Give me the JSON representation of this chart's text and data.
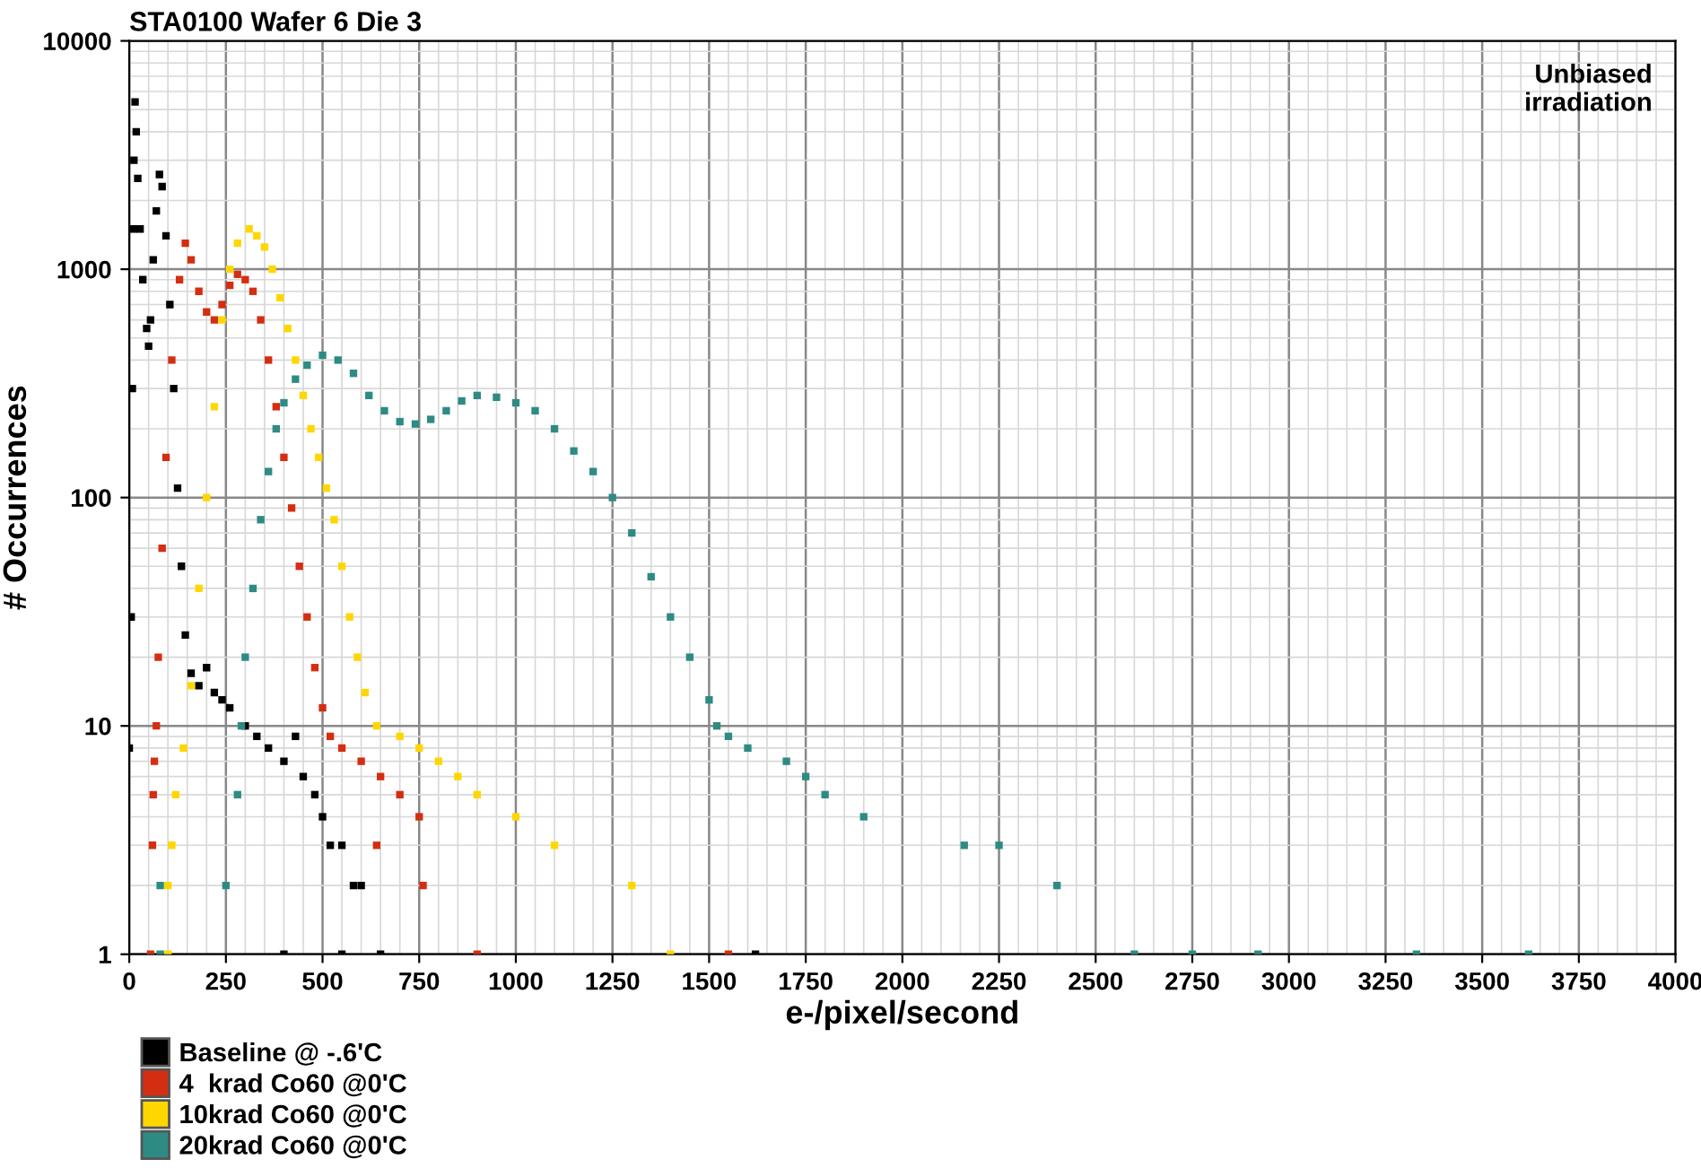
{
  "chart_data": {
    "type": "scatter",
    "title": "STA0100 Wafer 6 Die 3",
    "xlabel": "e-/pixel/second",
    "ylabel": "# Occurrences",
    "annotations": [
      "Unbiased\nirradiation"
    ],
    "xlim": [
      0,
      4000
    ],
    "xticks": [
      0,
      250,
      500,
      750,
      1000,
      1250,
      1500,
      1750,
      2000,
      2250,
      2500,
      2750,
      3000,
      3250,
      3500,
      3750,
      4000
    ],
    "ylim": [
      1,
      10000
    ],
    "yticks": [
      1,
      10,
      100,
      1000,
      10000
    ],
    "log": "y",
    "grid": true,
    "legend": "bottom left",
    "marker": "square",
    "series": [
      {
        "name": "Baseline @ -.6'C",
        "color": "#000000",
        "x": [
          0,
          5,
          8,
          10,
          12,
          15,
          18,
          22,
          28,
          35,
          45,
          50,
          55,
          62,
          70,
          78,
          85,
          95,
          105,
          115,
          125,
          135,
          145,
          160,
          180,
          200,
          220,
          240,
          260,
          300,
          330,
          360,
          400,
          430,
          450,
          480,
          500,
          520,
          550,
          580,
          600,
          400,
          550,
          650,
          1620
        ],
        "values": [
          8,
          30,
          300,
          1500,
          3000,
          5400,
          4000,
          2500,
          1500,
          900,
          550,
          460,
          600,
          1100,
          1800,
          2600,
          2300,
          1400,
          700,
          300,
          110,
          50,
          25,
          17,
          15,
          18,
          14,
          13,
          12,
          10,
          9,
          8,
          7,
          9,
          6,
          5,
          4,
          3,
          3,
          2,
          2,
          1,
          1,
          1,
          1
        ]
      },
      {
        "name": "4  krad Co60 @0'C",
        "color": "#d42e12",
        "x": [
          55,
          60,
          62,
          65,
          70,
          75,
          85,
          95,
          110,
          130,
          145,
          160,
          180,
          200,
          220,
          240,
          260,
          280,
          300,
          320,
          340,
          360,
          380,
          400,
          420,
          440,
          460,
          480,
          500,
          520,
          550,
          600,
          650,
          700,
          750,
          640,
          760,
          900,
          1550
        ],
        "values": [
          1,
          3,
          5,
          7,
          10,
          20,
          60,
          150,
          400,
          900,
          1300,
          1100,
          800,
          650,
          600,
          700,
          850,
          950,
          900,
          800,
          600,
          400,
          250,
          150,
          90,
          50,
          30,
          18,
          12,
          9,
          8,
          7,
          6,
          5,
          4,
          3,
          2,
          1,
          1
        ]
      },
      {
        "name": "10krad Co60 @0'C",
        "color": "#ffd700",
        "x": [
          100,
          100,
          110,
          120,
          140,
          160,
          180,
          200,
          220,
          240,
          260,
          280,
          310,
          330,
          350,
          370,
          390,
          410,
          430,
          450,
          470,
          490,
          510,
          530,
          550,
          570,
          590,
          610,
          640,
          700,
          750,
          800,
          850,
          900,
          1000,
          1100,
          1300,
          1400
        ],
        "values": [
          1,
          2,
          3,
          5,
          8,
          15,
          40,
          100,
          250,
          600,
          1000,
          1300,
          1500,
          1400,
          1250,
          1000,
          750,
          550,
          400,
          280,
          200,
          150,
          110,
          80,
          50,
          30,
          20,
          14,
          10,
          9,
          8,
          7,
          6,
          5,
          4,
          3,
          2,
          1
        ]
      },
      {
        "name": "20krad Co60 @0'C",
        "color": "#2e8b84",
        "x": [
          80,
          80,
          250,
          280,
          290,
          300,
          320,
          340,
          360,
          380,
          400,
          430,
          460,
          500,
          540,
          580,
          620,
          660,
          700,
          740,
          780,
          820,
          860,
          900,
          950,
          1000,
          1050,
          1100,
          1150,
          1200,
          1250,
          1300,
          1350,
          1400,
          1450,
          1500,
          1520,
          1550,
          1600,
          1700,
          1750,
          1800,
          1900,
          2160,
          2250,
          2400,
          2600,
          2750,
          2920,
          3330,
          3620
        ],
        "values": [
          1,
          2,
          2,
          5,
          10,
          20,
          40,
          80,
          130,
          200,
          260,
          330,
          380,
          420,
          400,
          350,
          280,
          240,
          215,
          210,
          220,
          240,
          265,
          280,
          275,
          260,
          240,
          200,
          160,
          130,
          100,
          70,
          45,
          30,
          20,
          13,
          10,
          9,
          8,
          7,
          6,
          5,
          4,
          3,
          3,
          2,
          1,
          1,
          1,
          1,
          1
        ]
      }
    ]
  }
}
